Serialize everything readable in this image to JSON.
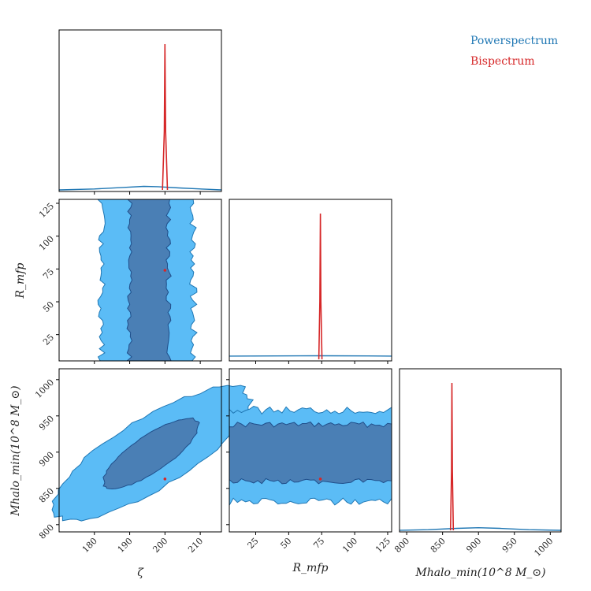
{
  "chart_data": {
    "type": "corner",
    "parameters": [
      {
        "key": "zeta",
        "label": "ζ",
        "range": [
          170,
          216
        ],
        "ticks": [
          180,
          190,
          200,
          210
        ],
        "tick_labels": [
          "180",
          "190",
          "200",
          "210"
        ]
      },
      {
        "key": "rmfp",
        "label": "R_mfp",
        "range": [
          5,
          128
        ],
        "ticks": [
          25,
          50,
          75,
          100,
          125
        ],
        "tick_labels": [
          "25",
          "50",
          "75",
          "100",
          "125"
        ]
      },
      {
        "key": "mhalo",
        "label": "Mhalo_min(10^8 M_⊙)",
        "range": [
          790,
          1015
        ],
        "ticks": [
          800,
          850,
          900,
          950,
          1000
        ],
        "tick_labels": [
          "800",
          "850",
          "900",
          "950",
          "1000"
        ]
      }
    ],
    "axis_labels": {
      "zeta_x": "ζ",
      "rmfp_x": "R_mfp",
      "rmfp_y": "R_mfp",
      "mhalo_x": "Mhalo_min(10^8 M_⊙)",
      "mhalo_y": "Mhalo_min(10^8 M_⊙)"
    },
    "series": [
      {
        "name": "Powerspectrum",
        "color": "#1f77b4",
        "fill_inner": "#4a7fb5",
        "fill_outer": "#5bbcf6",
        "marginals": {
          "zeta": {
            "x": [
              170,
              180,
              188,
              194,
              198,
              204,
              212,
              216
            ],
            "y": [
              0.0,
              0.006,
              0.015,
              0.022,
              0.02,
              0.012,
              0.004,
              0.0
            ]
          },
          "rmfp": {
            "x": [
              5,
              40,
              75,
              110,
              128
            ],
            "y": [
              0.02,
              0.021,
              0.022,
              0.021,
              0.02
            ]
          },
          "mhalo": {
            "x": [
              790,
              830,
              870,
              900,
              930,
              970,
              1015
            ],
            "y": [
              0.0,
              0.004,
              0.012,
              0.016,
              0.012,
              0.004,
              0.0
            ]
          }
        }
      },
      {
        "name": "Bispectrum",
        "color": "#d62728",
        "point": {
          "zeta": 200,
          "rmfp": 74,
          "mhalo": 863
        },
        "marginals": {
          "zeta": {
            "x": [
              199.3,
              199.8,
              200.0,
              200.2,
              200.7
            ],
            "y": [
              0.0,
              0.4,
              1.0,
              0.4,
              0.0
            ]
          },
          "rmfp": {
            "x": [
              72.8,
              73.6,
              74.0,
              74.4,
              75.2
            ],
            "y": [
              0.0,
              0.4,
              1.0,
              0.4,
              0.0
            ]
          },
          "mhalo": {
            "x": [
              861.0,
              862.4,
              863.0,
              863.6,
              865.0
            ],
            "y": [
              0.0,
              0.4,
              1.0,
              0.4,
              0.0
            ]
          }
        }
      }
    ],
    "contours_2d": {
      "zeta_rmfp": {
        "inner": {
          "x_range": [
            190,
            201
          ]
        },
        "outer": {
          "x_range": [
            182,
            208
          ]
        }
      },
      "zeta_mhalo": {
        "center": [
          196,
          898
        ],
        "inner_semi_axes": [
          8,
          45
        ],
        "outer_semi_axes": [
          17,
          88
        ],
        "correlation": "positive"
      },
      "rmfp_mhalo": {
        "inner": {
          "y_range": [
            860,
            938
          ]
        },
        "outer": {
          "y_range": [
            832,
            958
          ]
        }
      }
    },
    "legend": {
      "position": "top-right",
      "entries": [
        "Powerspectrum",
        "Bispectrum"
      ]
    },
    "grid": false
  }
}
